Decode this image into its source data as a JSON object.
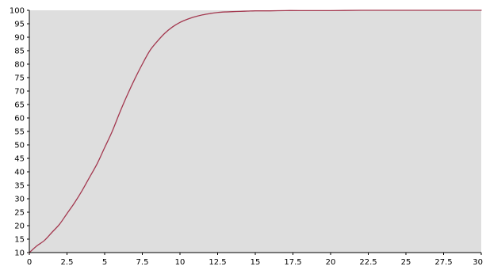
{
  "chart_data": {
    "type": "line",
    "title": "",
    "xlabel": "",
    "ylabel": "",
    "xlim": [
      0,
      30
    ],
    "ylim": [
      10,
      100
    ],
    "grid": false,
    "x_ticks": [
      0,
      2.5,
      5,
      7.5,
      10,
      12.5,
      15,
      17.5,
      20,
      22.5,
      25,
      27.5,
      30
    ],
    "x_tick_labels": [
      "0",
      "2.5",
      "5",
      "7.5",
      "10",
      "12.5",
      "15",
      "17.5",
      "20",
      "22.5",
      "25",
      "27.5",
      "30"
    ],
    "y_ticks": [
      10,
      15,
      20,
      25,
      30,
      35,
      40,
      45,
      50,
      55,
      60,
      65,
      70,
      75,
      80,
      85,
      90,
      95,
      100
    ],
    "y_tick_labels": [
      "10",
      "15",
      "20",
      "25",
      "30",
      "35",
      "40",
      "45",
      "50",
      "55",
      "60",
      "65",
      "70",
      "75",
      "80",
      "85",
      "90",
      "95",
      "100"
    ],
    "series": [
      {
        "color": "#a3384f",
        "x": [
          0,
          0.5,
          1,
          1.5,
          2,
          2.5,
          3,
          3.5,
          4,
          4.5,
          5,
          5.5,
          6,
          6.5,
          7,
          7.5,
          8,
          8.5,
          9,
          9.5,
          10,
          10.5,
          11,
          11.5,
          12,
          12.5,
          13,
          13.5,
          14,
          14.5,
          15,
          16,
          17,
          18,
          20,
          22,
          24,
          26,
          28,
          30
        ],
        "y": [
          10,
          12.5,
          14.5,
          17.5,
          20.5,
          24.5,
          28.5,
          33,
          38,
          43,
          49,
          55,
          62,
          68.5,
          74.5,
          80,
          85,
          88.5,
          91.5,
          93.8,
          95.5,
          96.7,
          97.6,
          98.3,
          98.8,
          99.2,
          99.4,
          99.5,
          99.6,
          99.7,
          99.8,
          99.8,
          99.9,
          99.9,
          99.9,
          100,
          100,
          100,
          100,
          100
        ]
      }
    ],
    "colors": {
      "plot_background": "#dedede",
      "axis": "#000000",
      "text": "#000000"
    }
  }
}
